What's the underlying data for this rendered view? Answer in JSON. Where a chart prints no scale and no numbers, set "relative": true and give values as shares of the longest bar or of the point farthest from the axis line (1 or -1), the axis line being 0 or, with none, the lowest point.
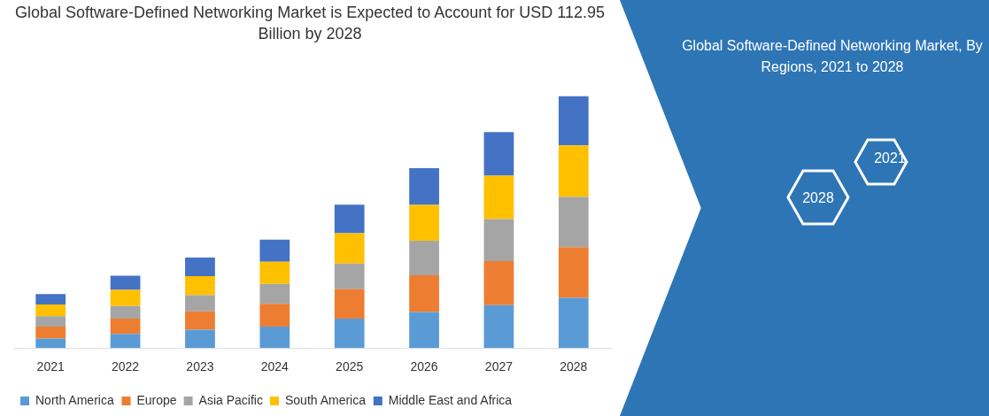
{
  "chart_data": {
    "type": "bar",
    "title": "Global Software-Defined Networking Market is Expected to Account for USD 112.95 Billion by 2028",
    "categories": [
      "2021",
      "2022",
      "2023",
      "2024",
      "2025",
      "2026",
      "2027",
      "2028"
    ],
    "series": [
      {
        "name": "North America",
        "color": "#5b9bd5",
        "values": [
          0.038,
          0.056,
          0.073,
          0.085,
          0.117,
          0.143,
          0.17,
          0.199
        ]
      },
      {
        "name": "Europe",
        "color": "#ed7d31",
        "values": [
          0.047,
          0.061,
          0.073,
          0.091,
          0.117,
          0.146,
          0.175,
          0.202
        ]
      },
      {
        "name": "Asia Pacific",
        "color": "#a5a5a5",
        "values": [
          0.041,
          0.05,
          0.064,
          0.079,
          0.102,
          0.137,
          0.167,
          0.199
        ]
      },
      {
        "name": "South America",
        "color": "#ffc000",
        "values": [
          0.047,
          0.064,
          0.076,
          0.088,
          0.12,
          0.143,
          0.173,
          0.205
        ]
      },
      {
        "name": "Middle East and Africa",
        "color": "#4472c4",
        "values": [
          0.041,
          0.056,
          0.073,
          0.088,
          0.114,
          0.146,
          0.173,
          0.195
        ]
      }
    ],
    "stacked": true,
    "relative": true,
    "grid": false,
    "legend": "bottom left",
    "annotations": [
      "Global Software-Defined Networking Market, By Regions, 2021 to 2028",
      "2021",
      "2028"
    ]
  }
}
